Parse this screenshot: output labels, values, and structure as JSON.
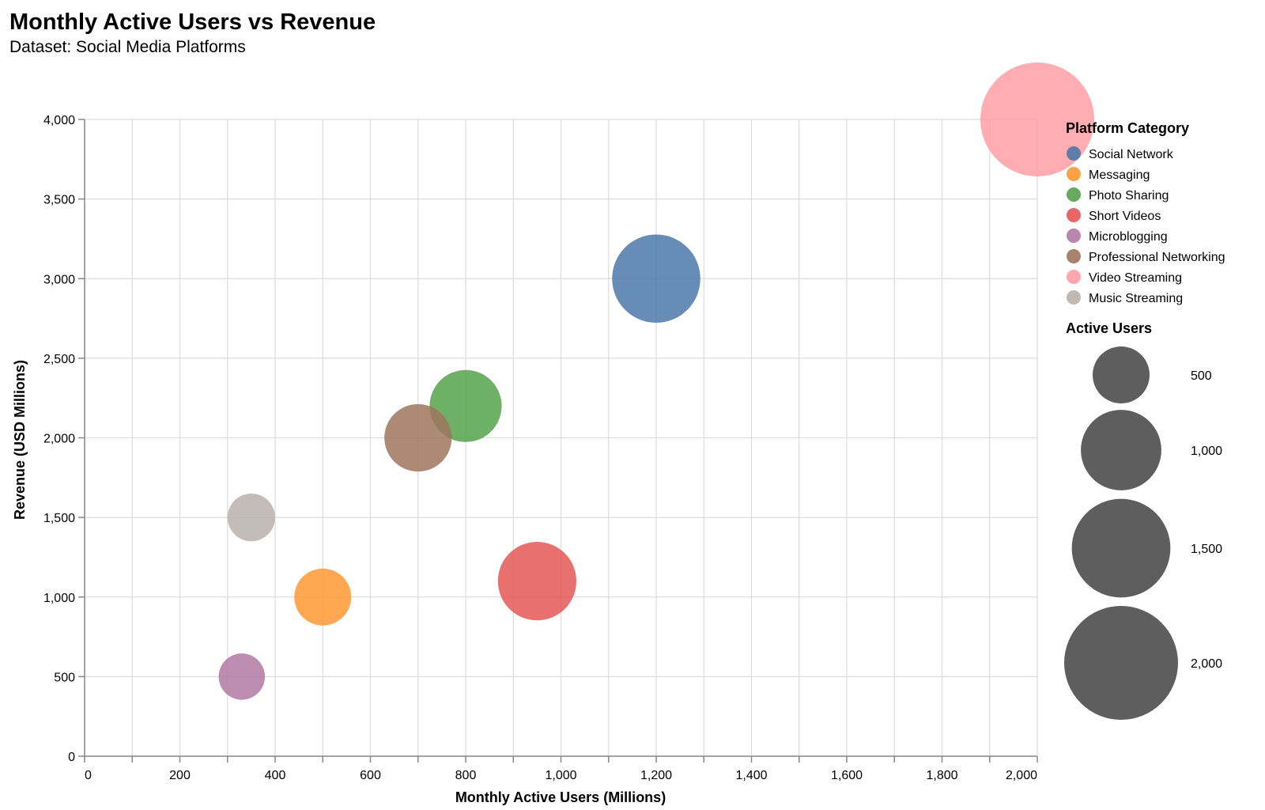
{
  "chart_data": {
    "type": "scatter",
    "title": "Monthly Active Users vs Revenue",
    "subtitle": "Dataset: Social Media Platforms",
    "xlabel": "Monthly Active Users (Millions)",
    "ylabel": "Revenue (USD Millions)",
    "xlim": [
      0,
      2000
    ],
    "ylim": [
      0,
      4000
    ],
    "x_ticks": [
      0,
      200,
      400,
      600,
      800,
      1000,
      1200,
      1400,
      1600,
      1800,
      2000
    ],
    "x_grid_step": 100,
    "y_ticks": [
      0,
      500,
      1000,
      1500,
      2000,
      2500,
      3000,
      3500,
      4000
    ],
    "x_tick_labels": [
      "0",
      "200",
      "400",
      "600",
      "800",
      "1,000",
      "1,200",
      "1,400",
      "1,600",
      "1,800",
      "2,000"
    ],
    "y_tick_labels": [
      "0",
      "500",
      "1,000",
      "1,500",
      "2,000",
      "2,500",
      "3,000",
      "3,500",
      "4,000"
    ],
    "grid": true,
    "color_legend": {
      "title": "Platform Category",
      "placement": "right"
    },
    "size_legend": {
      "title": "Active Users",
      "values": [
        500,
        1000,
        1500,
        2000
      ],
      "labels": [
        "500",
        "1,000",
        "1,500",
        "2,000"
      ]
    },
    "series": [
      {
        "name": "Social Network",
        "color": "#4c78a8",
        "x": 1200,
        "y": 3000,
        "size": 1200
      },
      {
        "name": "Messaging",
        "color": "#ff9833",
        "x": 500,
        "y": 1000,
        "size": 500
      },
      {
        "name": "Photo Sharing",
        "color": "#54a24b",
        "x": 800,
        "y": 2200,
        "size": 800
      },
      {
        "name": "Short Videos",
        "color": "#e45756",
        "x": 950,
        "y": 1100,
        "size": 950
      },
      {
        "name": "Microblogging",
        "color": "#b279a2",
        "x": 330,
        "y": 500,
        "size": 330
      },
      {
        "name": "Professional Networking",
        "color": "#9d755d",
        "x": 700,
        "y": 2000,
        "size": 700
      },
      {
        "name": "Video Streaming",
        "color": "#ff9da6",
        "x": 2000,
        "y": 4000,
        "size": 2000
      },
      {
        "name": "Music Streaming",
        "color": "#bab0ac",
        "x": 350,
        "y": 1500,
        "size": 350
      }
    ]
  }
}
